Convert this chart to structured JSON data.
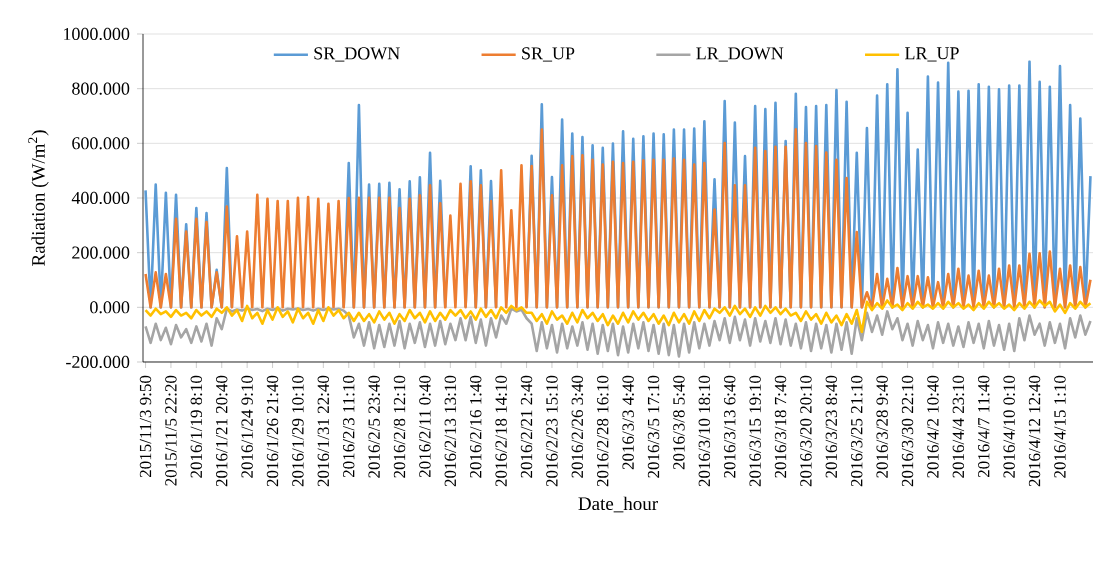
{
  "chart_data": {
    "type": "line",
    "xlabel": "Date_hour",
    "ylabel": "Radiation (W/m$^{2}$)",
    "categories": [
      "2015/11/3 9:50",
      null,
      null,
      null,
      null,
      "2015/11/5 22:20",
      null,
      null,
      null,
      null,
      "2016/1/19 8:10",
      null,
      null,
      null,
      null,
      "2016/1/21 20:40",
      null,
      null,
      null,
      null,
      "2016/1/24 9:10",
      null,
      null,
      null,
      null,
      "2016/1/26 21:40",
      null,
      null,
      null,
      null,
      "2016/1/29 10:10",
      null,
      null,
      null,
      null,
      "2016/1/31 22:40",
      null,
      null,
      null,
      null,
      "2016/2/3 11:10",
      null,
      null,
      null,
      null,
      "2016/2/5 23:40",
      null,
      null,
      null,
      null,
      "2016/2/8 12:10",
      null,
      null,
      null,
      null,
      "2016/2/11 0:40",
      null,
      null,
      null,
      null,
      "2016/2/13 13:10",
      null,
      null,
      null,
      null,
      "2016/2/16 1:40",
      null,
      null,
      null,
      null,
      "2016/2/18 14:10",
      null,
      null,
      null,
      null,
      "2016/2/21 2:40",
      null,
      null,
      null,
      null,
      "2016/2/23 15:10",
      null,
      null,
      null,
      null,
      "2016/2/26 3:40",
      null,
      null,
      null,
      null,
      "2016/2/28 16:10",
      null,
      null,
      null,
      null,
      "2016/3/3 4:40",
      null,
      null,
      null,
      null,
      "2016/3/5 17:10",
      null,
      null,
      null,
      null,
      "2016/3/8 5:40",
      null,
      null,
      null,
      null,
      "2016/3/10 18:10",
      null,
      null,
      null,
      null,
      "2016/3/13 6:40",
      null,
      null,
      null,
      null,
      "2016/3/15 19:10",
      null,
      null,
      null,
      null,
      "2016/3/18 7:40",
      null,
      null,
      null,
      null,
      "2016/3/20 20:10",
      null,
      null,
      null,
      null,
      "2016/3/23 8:40",
      null,
      null,
      null,
      null,
      "2016/3/25 21:10",
      null,
      null,
      null,
      null,
      "2016/3/28 9:40",
      null,
      null,
      null,
      null,
      "2016/3/30 22:10",
      null,
      null,
      null,
      null,
      "2016/4/2 10:40",
      null,
      null,
      null,
      null,
      "2016/4/4 23:10",
      null,
      null,
      null,
      null,
      "2016/4/7 11:40",
      null,
      null,
      null,
      null,
      "2016/4/10 0:10",
      null,
      null,
      null,
      null,
      "2016/4/12 12:40",
      null,
      null,
      null,
      null,
      "2016/4/15 1:10",
      null,
      null,
      null,
      null,
      null,
      null
    ],
    "series": [
      {
        "name": "SR_DOWN",
        "color": "#5b9bd5",
        "values": [
          428,
          0,
          449,
          0,
          419,
          0,
          412,
          0,
          304,
          0,
          363,
          0,
          345,
          0,
          137,
          0,
          510,
          0,
          null,
          null,
          null,
          null,
          null,
          null,
          null,
          null,
          null,
          null,
          null,
          null,
          null,
          null,
          null,
          null,
          null,
          null,
          null,
          null,
          null,
          0,
          528,
          0,
          740,
          0,
          449,
          0,
          452,
          0,
          456,
          0,
          432,
          0,
          461,
          0,
          476,
          0,
          565,
          0,
          463,
          0,
          null,
          null,
          null,
          0,
          516,
          0,
          501,
          0,
          462,
          0,
          null,
          null,
          null,
          null,
          null,
          0,
          554,
          0,
          743,
          0,
          477,
          0,
          687,
          0,
          636,
          0,
          623,
          0,
          593,
          0,
          584,
          0,
          599,
          0,
          644,
          0,
          617,
          0,
          626,
          0,
          636,
          0,
          633,
          0,
          650,
          0,
          650,
          0,
          654,
          0,
          681,
          0,
          468,
          0,
          755,
          0,
          676,
          0,
          553,
          0,
          736,
          0,
          725,
          0,
          748,
          0,
          608,
          0,
          781,
          0,
          733,
          0,
          736,
          0,
          740,
          0,
          795,
          0,
          752,
          0,
          565,
          0,
          656,
          0,
          775,
          0,
          816,
          0,
          871,
          0,
          712,
          0,
          577,
          0,
          844,
          0,
          822,
          0,
          895,
          0,
          789,
          0,
          792,
          0,
          816,
          0,
          807,
          0,
          798,
          0,
          811,
          0,
          811,
          0,
          899,
          0,
          825,
          0,
          807,
          0,
          883,
          0,
          740,
          0,
          691,
          0,
          480
        ]
      },
      {
        "name": "SR_UP",
        "color": "#ed7d31",
        "values": [
          122,
          0,
          128,
          0,
          122,
          0,
          324,
          0,
          277,
          0,
          324,
          0,
          312,
          0,
          128,
          0,
          369,
          0,
          260,
          0,
          277,
          0,
          412,
          0,
          397,
          0,
          389,
          0,
          389,
          0,
          401,
          0,
          403,
          0,
          397,
          0,
          379,
          0,
          389,
          0,
          400,
          0,
          401,
          0,
          401,
          0,
          401,
          0,
          401,
          0,
          363,
          0,
          397,
          0,
          410,
          0,
          446,
          0,
          381,
          0,
          336,
          0,
          452,
          0,
          461,
          0,
          446,
          0,
          389,
          0,
          501,
          0,
          355,
          0,
          520,
          0,
          517,
          0,
          650,
          0,
          410,
          0,
          520,
          0,
          553,
          0,
          556,
          0,
          540,
          0,
          522,
          0,
          532,
          0,
          528,
          0,
          532,
          0,
          538,
          0,
          540,
          0,
          540,
          0,
          544,
          0,
          540,
          0,
          522,
          0,
          528,
          0,
          358,
          0,
          601,
          0,
          446,
          0,
          446,
          0,
          584,
          0,
          572,
          0,
          587,
          0,
          587,
          0,
          651,
          0,
          601,
          0,
          590,
          0,
          566,
          0,
          540,
          0,
          473,
          0,
          275,
          0,
          55,
          0,
          122,
          0,
          104,
          0,
          144,
          0,
          114,
          0,
          114,
          0,
          110,
          0,
          92,
          0,
          122,
          0,
          141,
          0,
          116,
          0,
          134,
          0,
          116,
          0,
          141,
          0,
          153,
          0,
          153,
          0,
          196,
          0,
          198,
          0,
          204,
          0,
          141,
          0,
          153,
          0,
          147,
          0,
          101
        ]
      },
      {
        "name": "LR_DOWN",
        "color": "#a5a5a5",
        "values": [
          -70,
          -130,
          -60,
          -120,
          -75,
          -135,
          -65,
          -110,
          -80,
          -130,
          -70,
          -125,
          -60,
          -140,
          -40,
          -80,
          -5,
          -15,
          -8,
          -12,
          -4,
          -10,
          -6,
          -14,
          -5,
          -10,
          -3,
          -12,
          -5,
          -8,
          -4,
          -10,
          -6,
          -12,
          -5,
          -10,
          -4,
          -8,
          -5,
          -12,
          -30,
          -110,
          -60,
          -140,
          -55,
          -150,
          -65,
          -145,
          -60,
          -140,
          -50,
          -150,
          -60,
          -130,
          -55,
          -145,
          -60,
          -140,
          -50,
          -135,
          -60,
          -120,
          -40,
          -120,
          -35,
          -130,
          -45,
          -140,
          -40,
          -110,
          -30,
          -60,
          -5,
          -15,
          -8,
          -40,
          -60,
          -160,
          -55,
          -150,
          -65,
          -165,
          -60,
          -150,
          -70,
          -140,
          -55,
          -155,
          -60,
          -170,
          -65,
          -160,
          -60,
          -175,
          -70,
          -165,
          -60,
          -150,
          -55,
          -160,
          -65,
          -170,
          -60,
          -175,
          -65,
          -180,
          -60,
          -165,
          -55,
          -150,
          -60,
          -140,
          -50,
          -120,
          -40,
          -130,
          -35,
          -120,
          -45,
          -140,
          -40,
          -125,
          -50,
          -130,
          -40,
          -135,
          -45,
          -140,
          -60,
          -150,
          -55,
          -160,
          -60,
          -150,
          -65,
          -165,
          -60,
          -155,
          -55,
          -170,
          -40,
          -120,
          -20,
          -90,
          -30,
          -100,
          -15,
          -80,
          -40,
          -120,
          -60,
          -140,
          -50,
          -120,
          -65,
          -150,
          -55,
          -130,
          -60,
          -140,
          -70,
          -145,
          -55,
          -130,
          -60,
          -150,
          -50,
          -140,
          -65,
          -155,
          -60,
          -160,
          -40,
          -120,
          -30,
          -100,
          -60,
          -140,
          -55,
          -130,
          -60,
          -150,
          -40,
          -110,
          -30,
          -100,
          -50
        ]
      },
      {
        "name": "LR_UP",
        "color": "#ffc000",
        "values": [
          -10,
          -30,
          -5,
          -25,
          -15,
          -35,
          -10,
          -30,
          -20,
          -40,
          -10,
          -30,
          -15,
          -35,
          -5,
          -20,
          0,
          -30,
          -10,
          -50,
          5,
          -40,
          -20,
          -60,
          -10,
          -45,
          0,
          -35,
          -15,
          -55,
          -5,
          -40,
          -20,
          -60,
          -10,
          -50,
          0,
          -30,
          -10,
          -40,
          -20,
          -50,
          -20,
          -50,
          -25,
          -55,
          -15,
          -45,
          -20,
          -60,
          -25,
          -50,
          -10,
          -40,
          -20,
          -55,
          -15,
          -50,
          -20,
          -45,
          -10,
          -30,
          -10,
          -40,
          -15,
          -45,
          -5,
          -35,
          -10,
          -40,
          0,
          -20,
          5,
          -10,
          0,
          -20,
          -20,
          -50,
          -25,
          -60,
          -15,
          -45,
          -30,
          -60,
          -20,
          -55,
          -10,
          -40,
          -20,
          -50,
          -25,
          -65,
          -30,
          -60,
          -20,
          -55,
          -15,
          -45,
          -20,
          -50,
          -25,
          -60,
          -30,
          -65,
          -20,
          -55,
          -25,
          -60,
          -15,
          -50,
          -10,
          -40,
          -5,
          -20,
          0,
          -30,
          5,
          -25,
          -5,
          -35,
          0,
          -30,
          5,
          -20,
          0,
          -25,
          -5,
          -30,
          -20,
          -50,
          -15,
          -45,
          -25,
          -60,
          -20,
          -55,
          -30,
          -65,
          -25,
          -60,
          -10,
          -90,
          20,
          -10,
          15,
          -5,
          25,
          0,
          10,
          -10,
          15,
          -5,
          20,
          0,
          10,
          -5,
          15,
          -5,
          20,
          0,
          15,
          -5,
          10,
          -10,
          15,
          -5,
          20,
          0,
          15,
          -5,
          10,
          -10,
          15,
          -5,
          20,
          0,
          25,
          5,
          20,
          -15,
          10,
          -20,
          15,
          -5,
          20,
          0,
          15
        ]
      }
    ],
    "ylim": [
      -200,
      1000
    ],
    "yticks": [
      {
        "value": -200,
        "label": "-200.000"
      },
      {
        "value": 0,
        "label": "0.000"
      },
      {
        "value": 200,
        "label": "200.000"
      },
      {
        "value": 400,
        "label": "400.000"
      },
      {
        "value": 600,
        "label": "600.000"
      },
      {
        "value": 800,
        "label": "800.000"
      },
      {
        "value": 1000,
        "label": "1000.000"
      }
    ],
    "grid": "y",
    "legend": "top"
  }
}
